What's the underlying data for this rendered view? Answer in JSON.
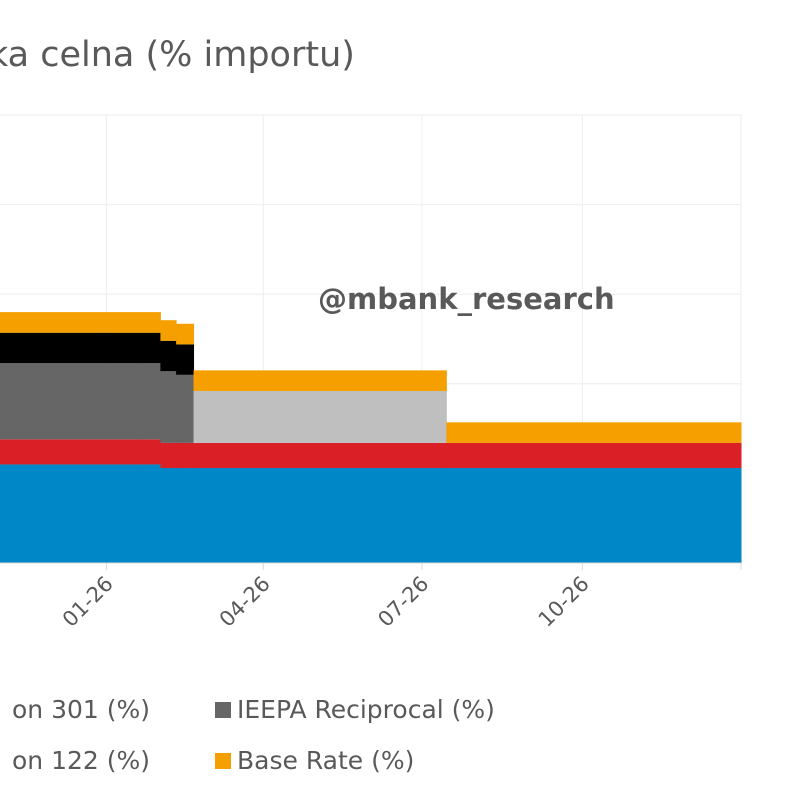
{
  "chart_data": {
    "type": "area",
    "title": "ka celna (% importu)",
    "watermark": "@mbank_research",
    "x_ticks": [
      "01-26",
      "04-26",
      "07-26",
      "10-26"
    ],
    "x_tick_dates": [
      "2026-01-01",
      "2026-04-01",
      "2026-07-01",
      "2026-10-01"
    ],
    "x_range": [
      "2025-11-01",
      "2026-12-31"
    ],
    "stacked": true,
    "grid": true,
    "legend_position": "bottom",
    "dates": [
      "2025-11-01",
      "2026-01-20",
      "2026-02-01",
      "2026-02-10",
      "2026-02-20",
      "2026-07-15",
      "2026-12-31"
    ],
    "series": [
      {
        "name": "",
        "color": "#0087C8",
        "values": [
          11.0,
          11.0,
          10.6,
          10.6,
          10.6,
          10.6,
          10.6
        ]
      },
      {
        "name": "",
        "color": "#DA1F26",
        "values": [
          2.8,
          2.8,
          2.8,
          2.8,
          2.8,
          2.8,
          2.8
        ]
      },
      {
        "name": "IEEPA Reciprocal (%)",
        "color": "#666666",
        "values": [
          8.5,
          8.5,
          8.0,
          7.6,
          0,
          0,
          0
        ]
      },
      {
        "name": "",
        "color": "#000000",
        "values": [
          3.4,
          3.4,
          3.4,
          3.4,
          0,
          0,
          0
        ]
      },
      {
        "name": "",
        "color": "#BFBFBF",
        "values": [
          0,
          0,
          0,
          0,
          5.8,
          0,
          0
        ]
      },
      {
        "name": "Base Rate (%)",
        "color": "#F5A000",
        "values": [
          2.3,
          2.3,
          2.3,
          2.3,
          2.3,
          2.3,
          2.3
        ]
      }
    ],
    "legend": [
      {
        "label": "on 301 (%)",
        "color": ""
      },
      {
        "label": "IEEPA Reciprocal (%)",
        "color": "#666666"
      },
      {
        "label": "on 122 (%)",
        "color": ""
      },
      {
        "label": "Base Rate (%)",
        "color": "#F5A000"
      }
    ],
    "y_range": [
      0,
      50
    ]
  }
}
